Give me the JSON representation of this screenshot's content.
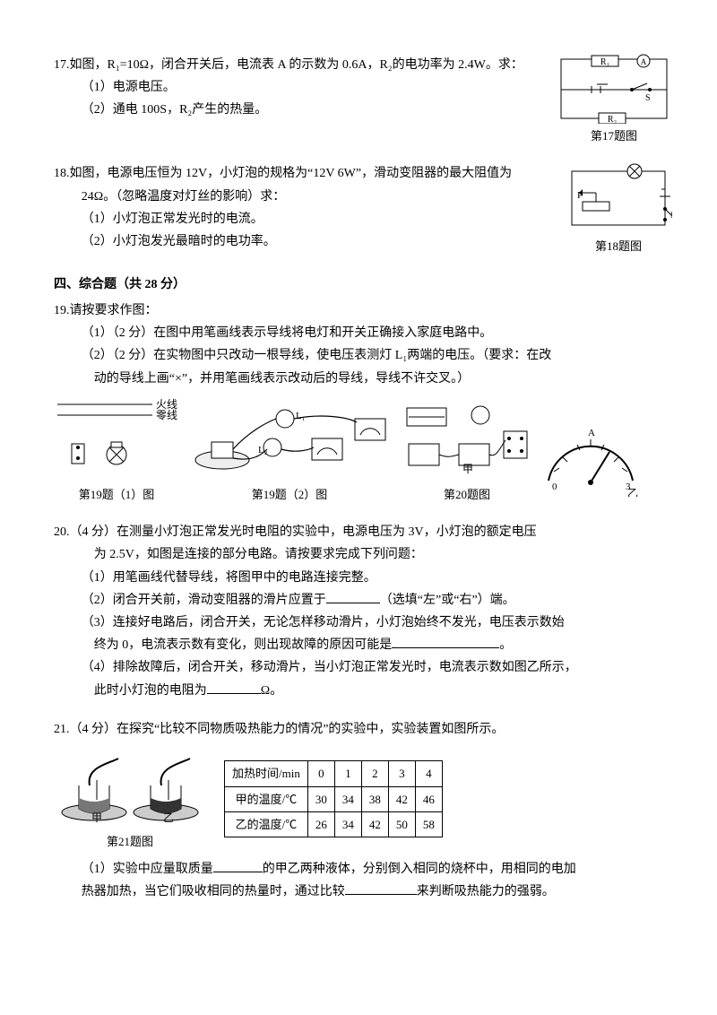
{
  "q17": {
    "stem": "17.如图，R₁=10Ω，闭合开关后，电流表 A 的示数为 0.6A，R₂的电功率为 2.4W。求：",
    "p1": "（1）电源电压。",
    "p2": "（2）通电 100S，R₂产生的热量。",
    "cap": "第17题图",
    "labels": {
      "r1": "R₁",
      "r2": "R₂",
      "a": "A",
      "s": "S"
    }
  },
  "q18": {
    "stem": "18.如图，电源电压恒为 12V，小灯泡的规格为“12V  6W”，滑动变阻器的最大阻值为",
    "stem2": "24Ω。（忽略温度对灯丝的影响）求：",
    "p1": "（1）小灯泡正常发光时的电流。",
    "p2": "（2）小灯泡发光最暗时的电功率。",
    "cap": "第18题图",
    "labels": {
      "p": "P",
      "s": "S"
    }
  },
  "sec4": "四、综合题（共 28 分）",
  "q19": {
    "head": "19.请按要求作图：",
    "p1": "（1）（2 分）在图中用笔画线表示导线将电灯和开关正确接入家庭电路中。",
    "p2a": "（2）（2 分）在实物图中只改动一根导线，使电压表测灯 L₁两端的电压。（要求：在改",
    "p2b": "动的导线上画“×”，并用笔画线表示改动后的导线，导线不许交叉。）",
    "fire": "火线",
    "zero": "零线",
    "cap1": "第19题（1）图",
    "cap2": "第19题（2）图",
    "cap20": "第20题图",
    "l1": "L₁",
    "l2": "L₂",
    "jia": "甲",
    "yi": "乙",
    "ammeter_scale": {
      "min": 0,
      "max": 3,
      "unit": "A"
    }
  },
  "q20": {
    "stem1": "20.（4 分）在测量小灯泡正常发光时电阻的实验中，电源电压为 3V，小灯泡的额定电压",
    "stem2": "为 2.5V，如图是连接的部分电路。请按要求完成下列问题：",
    "p1": "（1）用笔画线代替导线，将图甲中的电路连接完整。",
    "p2a": "（2）闭合开关前，滑动变阻器的滑片应置于",
    "p2b": "（选填“左”或“右”）端。",
    "p3a": "（3）连接好电路后，闭合开关，无论怎样移动滑片，小灯泡始终不发光，电压表示数始",
    "p3b": "终为 0，电流表示数有变化，则出现故障的原因可能是",
    "p3c": "。",
    "p4a": "（4）排除故障后，闭合开关，移动滑片，当小灯泡正常发光时，电流表示数如图乙所示，",
    "p4b": "此时小灯泡的电阻为",
    "p4c": "Ω。",
    "blank_w": {
      "p2": 60,
      "p3": 120,
      "p4": 60
    }
  },
  "q21": {
    "stem": "21.（4 分）在探究“比较不同物质吸热能力的情况”的实验中，实验装置如图所示。",
    "cap": "第21题图",
    "jia": "甲",
    "yi": "乙",
    "table": {
      "headers": [
        "加热时间/min",
        "0",
        "1",
        "2",
        "3",
        "4"
      ],
      "rows": [
        [
          "甲的温度/℃",
          "30",
          "34",
          "38",
          "42",
          "46"
        ],
        [
          "乙的温度/℃",
          "26",
          "34",
          "42",
          "50",
          "58"
        ]
      ]
    },
    "p1a": "（1）实验中应量取质量",
    "p1b": "的甲乙两种液体，分别倒入相同的烧杯中，用相同的电加",
    "p1c": "热器加热，当它们吸收相同的热量时，通过比较",
    "p1d": "来判断吸热能力的强弱。",
    "blank_w": {
      "b1": 55,
      "b2": 80
    }
  },
  "colors": {
    "stroke": "#000000",
    "fill_dark": "#555555",
    "bg": "#ffffff"
  }
}
